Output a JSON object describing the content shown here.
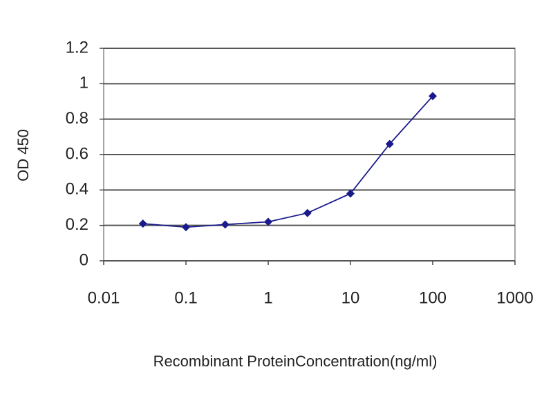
{
  "chart_data": {
    "type": "line",
    "x": [
      0.03,
      0.1,
      0.3,
      1,
      3,
      10,
      30,
      100
    ],
    "values": [
      0.21,
      0.19,
      0.205,
      0.22,
      0.27,
      0.38,
      0.66,
      0.93
    ],
    "color": "#1a1a8c",
    "xlabel": "Recombinant ProteinConcentration(ng/ml)",
    "ylabel": "OD 450",
    "xscale": "log",
    "xlim": [
      0.01,
      1000
    ],
    "xticks": [
      0.01,
      0.1,
      1,
      10,
      100,
      1000
    ],
    "ylim": [
      0,
      1.2
    ],
    "yticks": [
      0,
      0.2,
      0.4,
      0.6,
      0.8,
      1,
      1.2
    ],
    "grid": true
  }
}
